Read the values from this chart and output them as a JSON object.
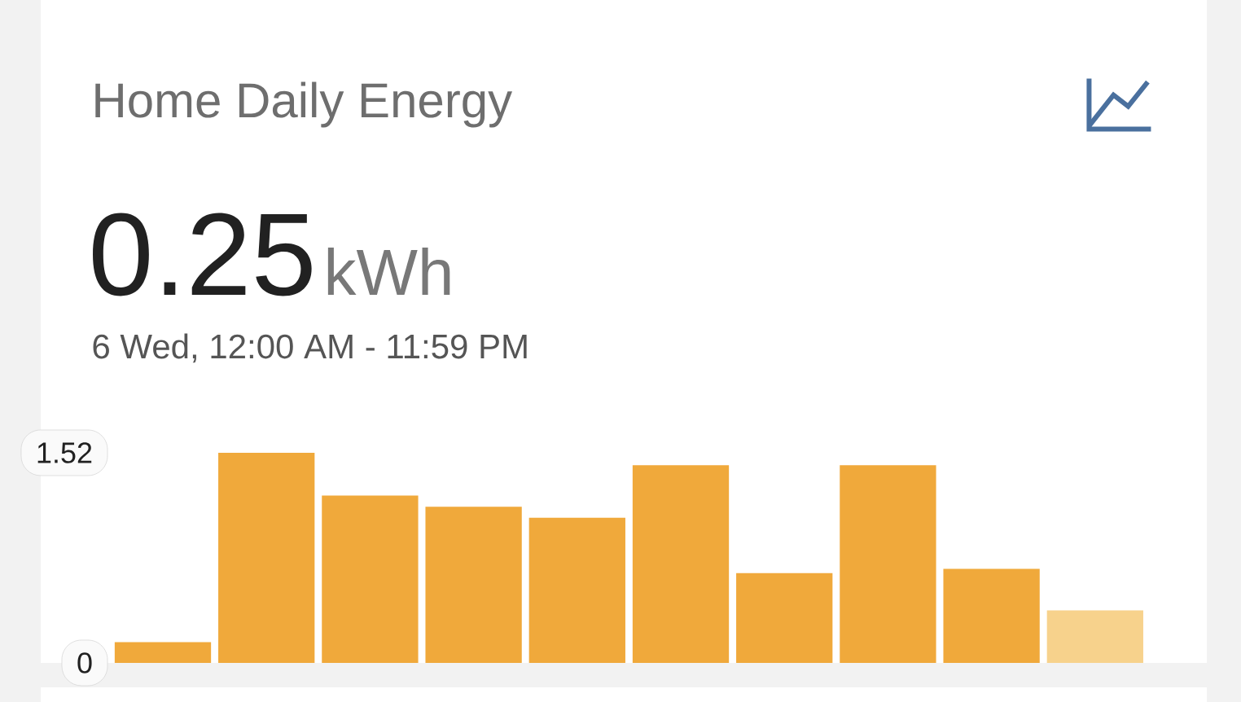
{
  "chart_data": {
    "type": "bar",
    "title": "Home Daily Energy",
    "annotations": [
      "0.25",
      "kWh",
      "6 Wed, 12:00 AM - 11:59 PM"
    ],
    "categories": [
      null,
      null,
      null,
      null,
      null,
      null,
      null,
      null,
      null,
      null
    ],
    "values": [
      0.15,
      1.52,
      1.21,
      1.13,
      1.05,
      1.43,
      0.65,
      1.43,
      0.68,
      0.38
    ],
    "colors": [
      "#f0a93b",
      "#f0a93b",
      "#f0a93b",
      "#f0a93b",
      "#f0a93b",
      "#f0a93b",
      "#f0a93b",
      "#f0a93b",
      "#f0a93b",
      "#f7d28c"
    ],
    "ylim": [
      0,
      1.52
    ],
    "yticks": [
      0,
      1.52
    ],
    "tick_labels": "y"
  }
}
